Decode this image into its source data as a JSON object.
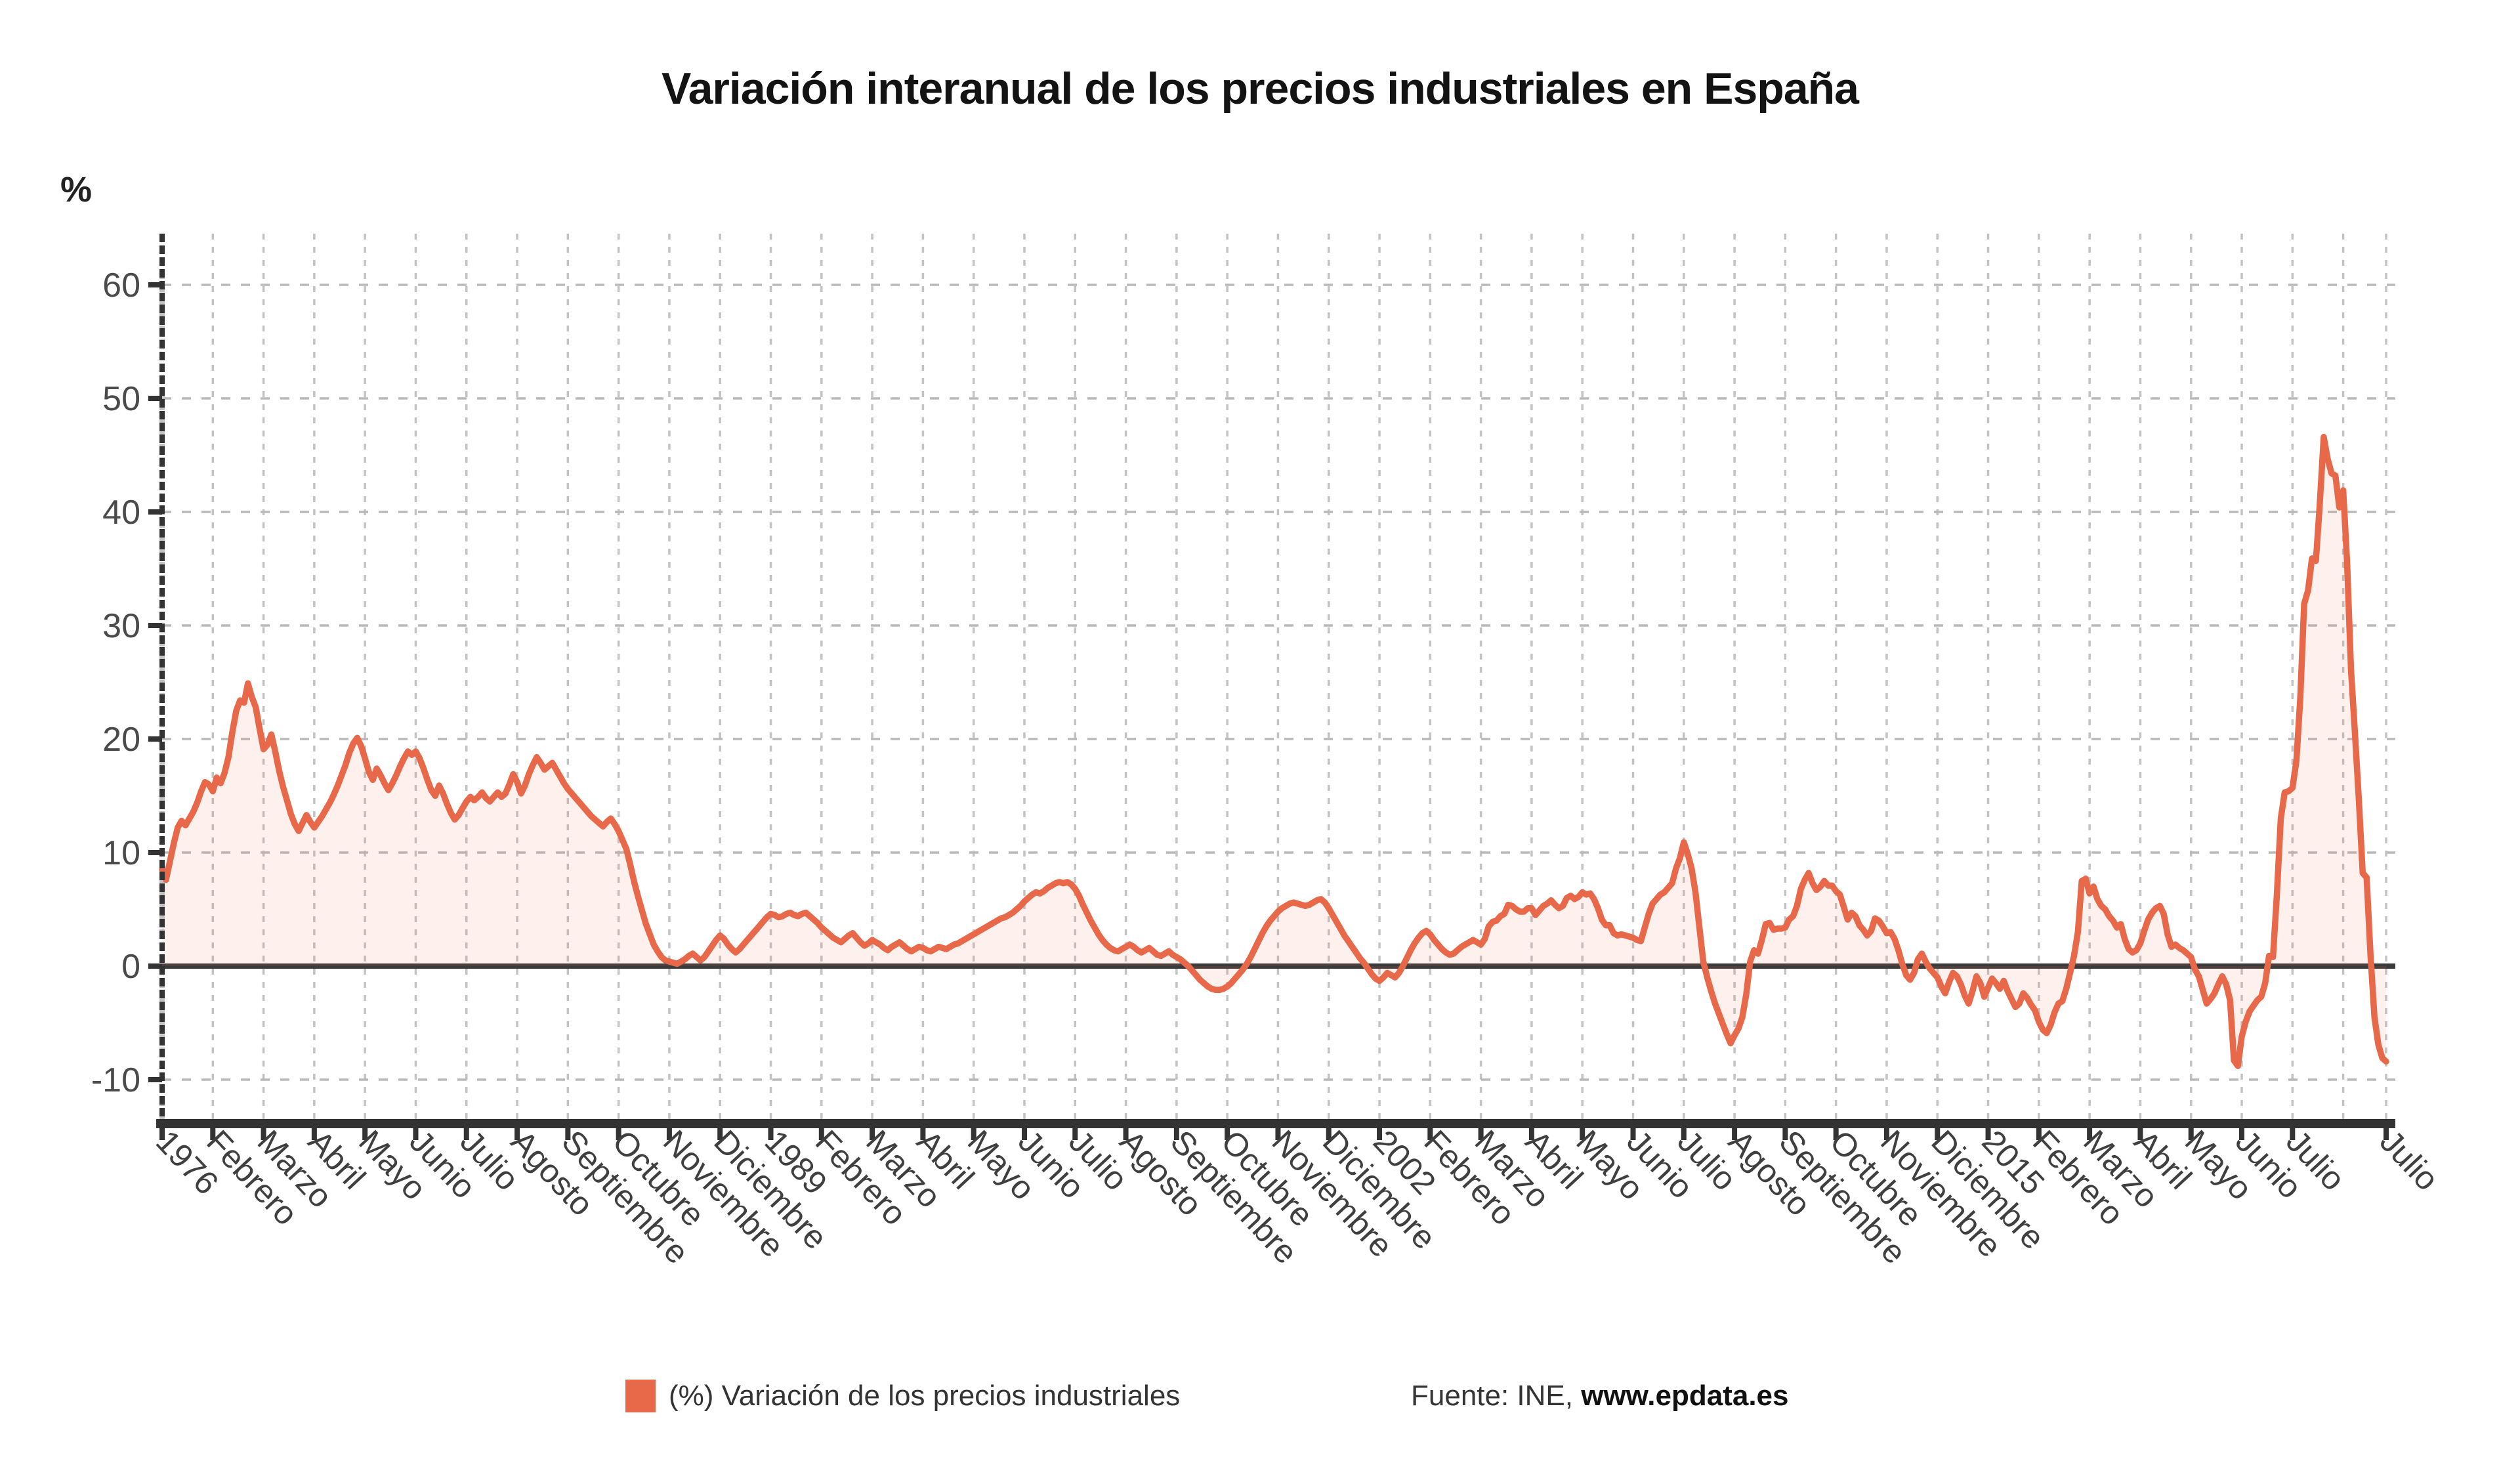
{
  "chart_data": {
    "type": "area",
    "title": "Variación interanual de los precios industriales en España",
    "ylabel": "%",
    "xlabel": "",
    "x_start": "Enero 1976",
    "x_end": "Julio 2023",
    "frequency": "monthly",
    "grid": true,
    "legend_position": "bottom",
    "ylim": [
      -13.8,
      64.4
    ],
    "y_ticks": [
      60,
      50,
      40,
      30,
      20,
      10,
      0,
      -10
    ],
    "x_ticks": [
      {
        "label": "1976",
        "month": 0
      },
      {
        "label": "Febrero",
        "month": 13
      },
      {
        "label": "Marzo",
        "month": 26
      },
      {
        "label": "Abril",
        "month": 39
      },
      {
        "label": "Mayo",
        "month": 52
      },
      {
        "label": "Junio",
        "month": 65
      },
      {
        "label": "Julio",
        "month": 78
      },
      {
        "label": "Agosto",
        "month": 91
      },
      {
        "label": "Septiembre",
        "month": 104
      },
      {
        "label": "Octubre",
        "month": 117
      },
      {
        "label": "Noviembre",
        "month": 130
      },
      {
        "label": "Diciembre",
        "month": 143
      },
      {
        "label": "1989",
        "month": 156
      },
      {
        "label": "Febrero",
        "month": 169
      },
      {
        "label": "Marzo",
        "month": 182
      },
      {
        "label": "Abril",
        "month": 195
      },
      {
        "label": "Mayo",
        "month": 208
      },
      {
        "label": "Junio",
        "month": 221
      },
      {
        "label": "Julio",
        "month": 234
      },
      {
        "label": "Agosto",
        "month": 247
      },
      {
        "label": "Septiembre",
        "month": 260
      },
      {
        "label": "Octubre",
        "month": 273
      },
      {
        "label": "Noviembre",
        "month": 286
      },
      {
        "label": "Diciembre",
        "month": 299
      },
      {
        "label": "2002",
        "month": 312
      },
      {
        "label": "Febrero",
        "month": 325
      },
      {
        "label": "Marzo",
        "month": 338
      },
      {
        "label": "Abril",
        "month": 351
      },
      {
        "label": "Mayo",
        "month": 364
      },
      {
        "label": "Junio",
        "month": 377
      },
      {
        "label": "Julio",
        "month": 390
      },
      {
        "label": "Agosto",
        "month": 403
      },
      {
        "label": "Septiembre",
        "month": 416
      },
      {
        "label": "Octubre",
        "month": 429
      },
      {
        "label": "Noviembre",
        "month": 442
      },
      {
        "label": "Diciembre",
        "month": 455
      },
      {
        "label": "2015",
        "month": 468
      },
      {
        "label": "Febrero",
        "month": 481
      },
      {
        "label": "Marzo",
        "month": 494
      },
      {
        "label": "Abril",
        "month": 507
      },
      {
        "label": "Mayo",
        "month": 520
      },
      {
        "label": "Junio",
        "month": 533
      },
      {
        "label": "Julio",
        "month": 546
      },
      {
        "label": "Julio",
        "month": 570
      }
    ],
    "series": [
      {
        "name": "(%) Variación de los precios industriales",
        "color": "#e8684a",
        "fill": "rgba(232,104,74,0.10)",
        "values": [
          8.5,
          7.6,
          9.2,
          10.8,
          12.2,
          12.8,
          12.4,
          13.0,
          13.6,
          14.4,
          15.4,
          16.2,
          16.0,
          15.4,
          16.6,
          16.1,
          17.0,
          18.4,
          20.6,
          22.5,
          23.4,
          23.2,
          24.9,
          23.7,
          22.8,
          20.9,
          19.1,
          19.5,
          20.4,
          18.9,
          17.2,
          15.8,
          14.6,
          13.4,
          12.5,
          11.9,
          12.6,
          13.3,
          12.7,
          12.2,
          12.7,
          13.2,
          13.8,
          14.4,
          15.1,
          15.9,
          16.8,
          17.7,
          18.8,
          19.6,
          20.1,
          19.4,
          18.3,
          17.1,
          16.4,
          17.4,
          16.8,
          16.1,
          15.5,
          16.1,
          16.8,
          17.6,
          18.3,
          18.9,
          18.6,
          18.9,
          18.3,
          17.4,
          16.4,
          15.5,
          15.0,
          15.9,
          15.2,
          14.3,
          13.5,
          12.9,
          13.3,
          13.9,
          14.5,
          14.9,
          14.6,
          14.9,
          15.3,
          14.8,
          14.5,
          14.9,
          15.3,
          14.9,
          15.2,
          16.0,
          16.9,
          16.2,
          15.2,
          15.9,
          16.9,
          17.7,
          18.4,
          17.9,
          17.3,
          17.6,
          17.9,
          17.3,
          16.7,
          16.1,
          15.6,
          15.2,
          14.8,
          14.4,
          14.0,
          13.6,
          13.2,
          12.9,
          12.6,
          12.3,
          12.7,
          13.0,
          12.5,
          11.9,
          11.1,
          10.3,
          8.9,
          7.4,
          6.1,
          4.9,
          3.7,
          2.8,
          1.9,
          1.3,
          0.8,
          0.5,
          0.4,
          0.3,
          0.2,
          0.4,
          0.6,
          0.9,
          1.1,
          0.8,
          0.5,
          0.8,
          1.3,
          1.8,
          2.3,
          2.7,
          2.4,
          1.9,
          1.5,
          1.2,
          1.5,
          1.9,
          2.3,
          2.7,
          3.1,
          3.5,
          3.9,
          4.3,
          4.6,
          4.5,
          4.3,
          4.4,
          4.6,
          4.7,
          4.5,
          4.4,
          4.6,
          4.7,
          4.4,
          4.1,
          3.8,
          3.4,
          3.1,
          2.8,
          2.5,
          2.3,
          2.1,
          2.4,
          2.7,
          2.9,
          2.5,
          2.1,
          1.8,
          2.0,
          2.3,
          2.1,
          1.9,
          1.6,
          1.4,
          1.7,
          1.9,
          2.1,
          1.8,
          1.5,
          1.3,
          1.5,
          1.7,
          1.6,
          1.4,
          1.3,
          1.5,
          1.7,
          1.6,
          1.5,
          1.7,
          1.9,
          2.0,
          2.2,
          2.4,
          2.6,
          2.8,
          3.0,
          3.2,
          3.4,
          3.6,
          3.8,
          4.0,
          4.2,
          4.3,
          4.5,
          4.7,
          5.0,
          5.3,
          5.7,
          6.0,
          6.3,
          6.5,
          6.4,
          6.6,
          6.9,
          7.1,
          7.3,
          7.4,
          7.3,
          7.4,
          7.2,
          6.8,
          6.2,
          5.4,
          4.7,
          4.0,
          3.4,
          2.8,
          2.3,
          1.9,
          1.6,
          1.4,
          1.3,
          1.5,
          1.7,
          1.9,
          1.7,
          1.4,
          1.2,
          1.4,
          1.6,
          1.3,
          1.0,
          0.9,
          1.1,
          1.3,
          1.0,
          0.8,
          0.6,
          0.3,
          0.0,
          -0.4,
          -0.8,
          -1.2,
          -1.5,
          -1.8,
          -2.0,
          -2.1,
          -2.1,
          -2.0,
          -1.8,
          -1.5,
          -1.1,
          -0.7,
          -0.3,
          0.2,
          0.8,
          1.5,
          2.2,
          2.9,
          3.5,
          4.0,
          4.4,
          4.8,
          5.1,
          5.3,
          5.5,
          5.6,
          5.5,
          5.4,
          5.3,
          5.4,
          5.6,
          5.8,
          5.9,
          5.6,
          5.1,
          4.5,
          3.9,
          3.3,
          2.7,
          2.2,
          1.7,
          1.2,
          0.7,
          0.3,
          -0.2,
          -0.7,
          -1.1,
          -1.3,
          -1.0,
          -0.6,
          -0.8,
          -1.0,
          -0.6,
          0.0,
          0.7,
          1.4,
          2.0,
          2.5,
          2.9,
          3.1,
          2.8,
          2.3,
          1.9,
          1.5,
          1.2,
          1.0,
          1.1,
          1.4,
          1.7,
          1.9,
          2.1,
          2.3,
          2.1,
          1.9,
          2.4,
          3.5,
          3.9,
          4.0,
          4.4,
          4.6,
          5.4,
          5.3,
          5.0,
          4.8,
          4.8,
          5.1,
          5.1,
          4.5,
          4.9,
          5.3,
          5.5,
          5.8,
          5.4,
          5.1,
          5.3,
          6.0,
          6.2,
          5.9,
          6.1,
          6.5,
          6.3,
          6.4,
          5.9,
          5.1,
          4.1,
          3.6,
          3.6,
          2.9,
          2.7,
          2.8,
          2.7,
          2.6,
          2.5,
          2.3,
          2.2,
          3.4,
          4.6,
          5.5,
          5.9,
          6.3,
          6.5,
          6.9,
          7.3,
          8.6,
          9.5,
          10.9,
          9.9,
          8.6,
          6.5,
          3.4,
          0.4,
          -1.0,
          -2.2,
          -3.3,
          -4.2,
          -5.1,
          -6.0,
          -6.8,
          -6.1,
          -5.5,
          -4.5,
          -2.5,
          0.4,
          1.4,
          1.1,
          2.3,
          3.7,
          3.8,
          3.2,
          3.3,
          3.3,
          3.4,
          4.1,
          4.4,
          5.3,
          6.8,
          7.6,
          8.2,
          7.3,
          6.7,
          7.0,
          7.5,
          7.1,
          7.1,
          6.6,
          6.3,
          5.2,
          4.1,
          4.7,
          4.4,
          3.6,
          3.2,
          2.7,
          3.1,
          4.2,
          4.0,
          3.5,
          2.9,
          3.0,
          2.4,
          1.4,
          0.2,
          -0.8,
          -1.2,
          -0.6,
          0.6,
          1.1,
          0.4,
          -0.2,
          -0.6,
          -1.0,
          -1.8,
          -2.4,
          -1.4,
          -0.6,
          -0.9,
          -1.6,
          -2.6,
          -3.3,
          -2.2,
          -0.9,
          -1.5,
          -2.7,
          -1.9,
          -1.1,
          -1.5,
          -2.0,
          -1.3,
          -2.2,
          -2.9,
          -3.6,
          -3.3,
          -2.4,
          -2.8,
          -3.4,
          -3.9,
          -4.9,
          -5.6,
          -5.9,
          -5.2,
          -4.1,
          -3.3,
          -3.1,
          -2.0,
          -0.6,
          0.9,
          3.0,
          7.5,
          7.7,
          6.4,
          7.0,
          5.9,
          5.3,
          5.0,
          4.4,
          4.0,
          3.4,
          3.7,
          2.4,
          1.5,
          1.2,
          1.4,
          2.0,
          3.1,
          4.1,
          4.7,
          5.1,
          5.3,
          4.6,
          2.8,
          1.7,
          1.9,
          1.6,
          1.4,
          1.1,
          0.8,
          -0.3,
          -0.9,
          -2.1,
          -3.3,
          -2.9,
          -2.4,
          -1.6,
          -0.9,
          -1.6,
          -3.0,
          -8.3,
          -8.8,
          -6.2,
          -4.9,
          -4.0,
          -3.5,
          -3.0,
          -2.7,
          -1.5,
          0.9,
          0.8,
          6.3,
          13.0,
          15.3,
          15.4,
          15.7,
          18.1,
          23.6,
          31.9,
          33.1,
          35.9,
          35.7,
          40.7,
          46.6,
          44.7,
          43.4,
          43.2,
          40.4,
          41.9,
          35.6,
          26.1,
          20.6,
          14.7,
          8.2,
          7.8,
          1.0,
          -4.5,
          -6.9,
          -8.1,
          -8.4
        ]
      }
    ],
    "source": {
      "prefix": "Fuente: INE, ",
      "site": "www.epdata.es"
    }
  },
  "colors": {
    "accent": "#e8684a",
    "area_fill": "rgba(232,104,74,0.10)",
    "axis": "#333333",
    "zero_line": "#3a3a3a",
    "grid_h": "#b9b9b9",
    "grid_v": "#c3c3c3",
    "tick_text": "#4a4a4a",
    "x_tick_text": "#3f3f3f"
  }
}
